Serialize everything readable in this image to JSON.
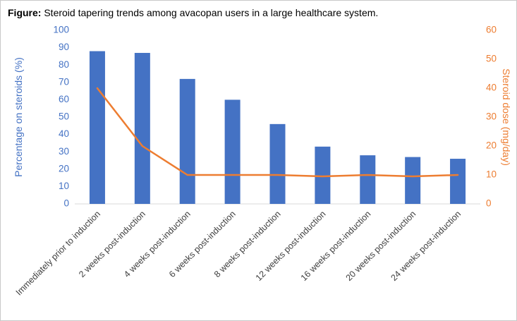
{
  "caption": {
    "prefix": "Figure:",
    "text": " Steroid tapering trends among avacopan users in a large healthcare system."
  },
  "chart_data": {
    "type": "bar",
    "subtype": "combo-bar-line",
    "title": "Steroid tapering trends among avacopan users in a large healthcare system",
    "categories": [
      "Immediately prior to induction",
      "2 weeks post-induction",
      "4 weeks post-induction",
      "6 weeks post-induction",
      "8 weeks post-induction",
      "12 weeks post-induction",
      "16 weeks post-induction",
      "20 weeks post-induction",
      "24 weeks post-induction"
    ],
    "series": [
      {
        "name": "Percentage on steroids (%)",
        "type": "bar",
        "axis": "left",
        "color": "#4472C4",
        "values": [
          88,
          87,
          72,
          60,
          46,
          33,
          28,
          27,
          26
        ]
      },
      {
        "name": "Steroid dose (mg/day)",
        "type": "line",
        "axis": "right",
        "color": "#ED7D31",
        "values": [
          40,
          20,
          10,
          10,
          10,
          9.5,
          10,
          9.5,
          10
        ]
      }
    ],
    "left_axis": {
      "label": "Percentage on steroids (%)",
      "min": 0,
      "max": 100,
      "step": 10,
      "color": "#4472C4"
    },
    "right_axis": {
      "label": "Steroid dose (mg/day)",
      "min": 0,
      "max": 60,
      "step": 10,
      "color": "#ED7D31"
    },
    "grid": false,
    "legend_position": "none",
    "x_label_color": "#404040",
    "axis_line_color": "#d9d9d9"
  }
}
